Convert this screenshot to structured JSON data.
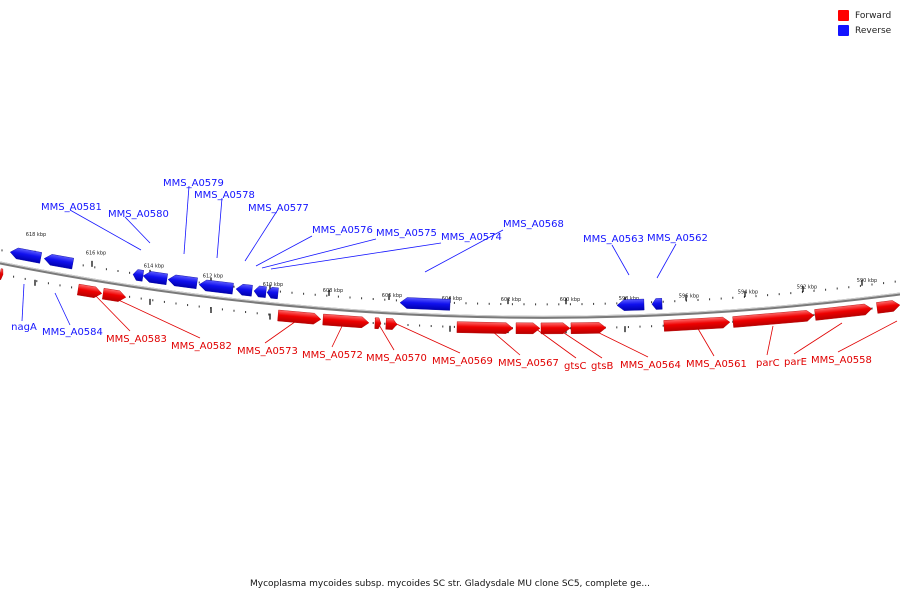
{
  "title": "Mycoplasma mycoides subsp. mycoides SC str. Gladysdale MU clone SC5, complete ge...",
  "legend": {
    "forward": {
      "label": "Forward",
      "color": "#ff0000"
    },
    "reverse": {
      "label": "Reverse",
      "color": "#1414ff"
    }
  },
  "scale_labels": [
    "618 kbp",
    "616 kbp",
    "614 kbp",
    "612 kbp",
    "610 kbp",
    "608 kbp",
    "606 kbp",
    "604 kbp",
    "602 kbp",
    "600 kbp",
    "598 kbp",
    "596 kbp",
    "594 kbp",
    "592 kbp",
    "590 kbp"
  ],
  "reverse_genes": [
    "MMS_A0581",
    "MMS_A0580",
    "MMS_A0579",
    "MMS_A0578",
    "MMS_A0577",
    "MMS_A0576",
    "MMS_A0575",
    "MMS_A0574",
    "MMS_A0568",
    "MMS_A0563",
    "MMS_A0562",
    "nagA",
    "MMS_A0584"
  ],
  "forward_genes": [
    "MMS_A0583",
    "MMS_A0582",
    "MMS_A0573",
    "MMS_A0572",
    "MMS_A0570",
    "MMS_A0569",
    "MMS_A0567",
    "gtsC",
    "gtsB",
    "MMS_A0564",
    "MMS_A0561",
    "parC",
    "parE",
    "MMS_A0558"
  ]
}
